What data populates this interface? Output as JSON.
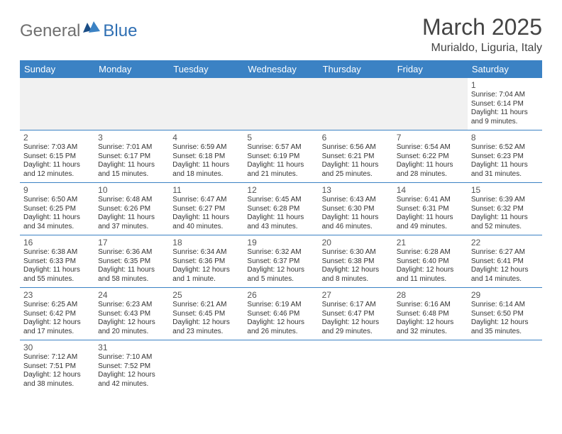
{
  "logo": {
    "part1": "General",
    "part2": "Blue"
  },
  "title": "March 2025",
  "location": "Murialdo, Liguria, Italy",
  "colors": {
    "header_bg": "#3b82c4",
    "header_text": "#ffffff",
    "border": "#3b82c4",
    "logo_gray": "#6f6f6f",
    "logo_blue": "#2f6fb3",
    "empty_bg": "#f1f1f1"
  },
  "day_headers": [
    "Sunday",
    "Monday",
    "Tuesday",
    "Wednesday",
    "Thursday",
    "Friday",
    "Saturday"
  ],
  "weeks": [
    [
      null,
      null,
      null,
      null,
      null,
      null,
      {
        "n": "1",
        "sr": "7:04 AM",
        "ss": "6:14 PM",
        "dl": "11 hours and 9 minutes."
      }
    ],
    [
      {
        "n": "2",
        "sr": "7:03 AM",
        "ss": "6:15 PM",
        "dl": "11 hours and 12 minutes."
      },
      {
        "n": "3",
        "sr": "7:01 AM",
        "ss": "6:17 PM",
        "dl": "11 hours and 15 minutes."
      },
      {
        "n": "4",
        "sr": "6:59 AM",
        "ss": "6:18 PM",
        "dl": "11 hours and 18 minutes."
      },
      {
        "n": "5",
        "sr": "6:57 AM",
        "ss": "6:19 PM",
        "dl": "11 hours and 21 minutes."
      },
      {
        "n": "6",
        "sr": "6:56 AM",
        "ss": "6:21 PM",
        "dl": "11 hours and 25 minutes."
      },
      {
        "n": "7",
        "sr": "6:54 AM",
        "ss": "6:22 PM",
        "dl": "11 hours and 28 minutes."
      },
      {
        "n": "8",
        "sr": "6:52 AM",
        "ss": "6:23 PM",
        "dl": "11 hours and 31 minutes."
      }
    ],
    [
      {
        "n": "9",
        "sr": "6:50 AM",
        "ss": "6:25 PM",
        "dl": "11 hours and 34 minutes."
      },
      {
        "n": "10",
        "sr": "6:48 AM",
        "ss": "6:26 PM",
        "dl": "11 hours and 37 minutes."
      },
      {
        "n": "11",
        "sr": "6:47 AM",
        "ss": "6:27 PM",
        "dl": "11 hours and 40 minutes."
      },
      {
        "n": "12",
        "sr": "6:45 AM",
        "ss": "6:28 PM",
        "dl": "11 hours and 43 minutes."
      },
      {
        "n": "13",
        "sr": "6:43 AM",
        "ss": "6:30 PM",
        "dl": "11 hours and 46 minutes."
      },
      {
        "n": "14",
        "sr": "6:41 AM",
        "ss": "6:31 PM",
        "dl": "11 hours and 49 minutes."
      },
      {
        "n": "15",
        "sr": "6:39 AM",
        "ss": "6:32 PM",
        "dl": "11 hours and 52 minutes."
      }
    ],
    [
      {
        "n": "16",
        "sr": "6:38 AM",
        "ss": "6:33 PM",
        "dl": "11 hours and 55 minutes."
      },
      {
        "n": "17",
        "sr": "6:36 AM",
        "ss": "6:35 PM",
        "dl": "11 hours and 58 minutes."
      },
      {
        "n": "18",
        "sr": "6:34 AM",
        "ss": "6:36 PM",
        "dl": "12 hours and 1 minute."
      },
      {
        "n": "19",
        "sr": "6:32 AM",
        "ss": "6:37 PM",
        "dl": "12 hours and 5 minutes."
      },
      {
        "n": "20",
        "sr": "6:30 AM",
        "ss": "6:38 PM",
        "dl": "12 hours and 8 minutes."
      },
      {
        "n": "21",
        "sr": "6:28 AM",
        "ss": "6:40 PM",
        "dl": "12 hours and 11 minutes."
      },
      {
        "n": "22",
        "sr": "6:27 AM",
        "ss": "6:41 PM",
        "dl": "12 hours and 14 minutes."
      }
    ],
    [
      {
        "n": "23",
        "sr": "6:25 AM",
        "ss": "6:42 PM",
        "dl": "12 hours and 17 minutes."
      },
      {
        "n": "24",
        "sr": "6:23 AM",
        "ss": "6:43 PM",
        "dl": "12 hours and 20 minutes."
      },
      {
        "n": "25",
        "sr": "6:21 AM",
        "ss": "6:45 PM",
        "dl": "12 hours and 23 minutes."
      },
      {
        "n": "26",
        "sr": "6:19 AM",
        "ss": "6:46 PM",
        "dl": "12 hours and 26 minutes."
      },
      {
        "n": "27",
        "sr": "6:17 AM",
        "ss": "6:47 PM",
        "dl": "12 hours and 29 minutes."
      },
      {
        "n": "28",
        "sr": "6:16 AM",
        "ss": "6:48 PM",
        "dl": "12 hours and 32 minutes."
      },
      {
        "n": "29",
        "sr": "6:14 AM",
        "ss": "6:50 PM",
        "dl": "12 hours and 35 minutes."
      }
    ],
    [
      {
        "n": "30",
        "sr": "7:12 AM",
        "ss": "7:51 PM",
        "dl": "12 hours and 38 minutes."
      },
      {
        "n": "31",
        "sr": "7:10 AM",
        "ss": "7:52 PM",
        "dl": "12 hours and 42 minutes."
      },
      null,
      null,
      null,
      null,
      null
    ]
  ]
}
